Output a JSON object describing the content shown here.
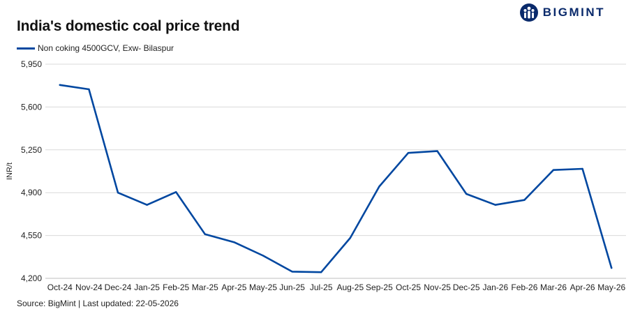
{
  "title": "India's domestic coal price trend",
  "source": "Source: BigMint | Last updated: 22-05-2026",
  "logo": {
    "text": "BIGMINT",
    "color": "#0a2a6b"
  },
  "chart_data": {
    "type": "line",
    "title": "India's domestic coal price trend",
    "ylabel": "INR/t",
    "xlabel": "",
    "ylim": [
      4200,
      5950
    ],
    "yticks": [
      4200,
      4550,
      4900,
      5250,
      5600,
      5950
    ],
    "ytick_labels": [
      "4,200",
      "4,550",
      "4,900",
      "5,250",
      "5,600",
      "5,950"
    ],
    "grid": true,
    "legend_position": "top-left",
    "categories": [
      "Oct-24",
      "Nov-24",
      "Dec-24",
      "Jan-25",
      "Feb-25",
      "Mar-25",
      "Apr-25",
      "May-25",
      "Jun-25",
      "Jul-25",
      "Aug-25",
      "Sep-25",
      "Oct-25",
      "Nov-25",
      "Dec-25",
      "Jan-26",
      "Feb-26",
      "Mar-26",
      "Apr-26",
      "May-26"
    ],
    "series": [
      {
        "name": "Non coking 4500GCV, Exw- Bilaspur",
        "color": "#0047A0",
        "values": [
          5780,
          5745,
          4900,
          4800,
          4905,
          4560,
          4495,
          4385,
          4255,
          4250,
          4530,
          4950,
          5225,
          5240,
          4890,
          4800,
          4840,
          5085,
          5095,
          4285
        ]
      }
    ]
  }
}
